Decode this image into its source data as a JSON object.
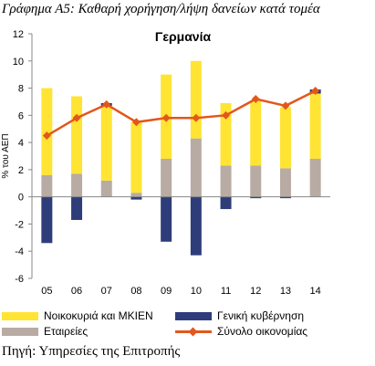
{
  "caption": "Γράφημα Α5: Καθαρή χορήγηση/λήψη δανείων κατά τομέα",
  "source": "Πηγή: Υπηρεσίες της Επιτροπής",
  "colors": {
    "households": "#FFE433",
    "corporations": "#B8ABA3",
    "government": "#2E3D7A",
    "total": "#E2571C"
  },
  "chart_data": {
    "type": "bar",
    "title": "Γερμανία",
    "ylabel": "% του ΑΕΠ",
    "xlabel": "",
    "ylim": [
      -6,
      12
    ],
    "yticks": [
      -6,
      -4,
      -2,
      0,
      2,
      4,
      6,
      8,
      10,
      12
    ],
    "categories": [
      "05",
      "06",
      "07",
      "08",
      "09",
      "10",
      "11",
      "12",
      "13",
      "14"
    ],
    "stacked": true,
    "grid": false,
    "legend_position": "bottom",
    "series": [
      {
        "name": "Εταιρείες",
        "kind": "bar",
        "color_key": "corporations",
        "values": [
          1.6,
          1.7,
          1.2,
          0.3,
          2.8,
          4.3,
          2.3,
          2.3,
          2.1,
          2.8
        ]
      },
      {
        "name": "Νοικοκυριά και ΜΚΙΕΝ",
        "kind": "bar",
        "color_key": "households",
        "values": [
          6.4,
          5.7,
          5.5,
          5.2,
          6.2,
          5.7,
          4.6,
          4.8,
          4.5,
          4.8
        ]
      },
      {
        "name": "Γενική κυβέρνηση",
        "kind": "bar",
        "color_key": "government",
        "values": [
          -3.4,
          -1.7,
          0.2,
          -0.2,
          -3.3,
          -4.3,
          -0.9,
          -0.1,
          -0.1,
          0.3
        ]
      },
      {
        "name": "Σύνολο οικονομίας",
        "kind": "line",
        "color_key": "total",
        "values": [
          4.5,
          5.8,
          6.8,
          5.5,
          5.8,
          5.8,
          6.0,
          7.2,
          6.7,
          7.8
        ]
      }
    ]
  }
}
